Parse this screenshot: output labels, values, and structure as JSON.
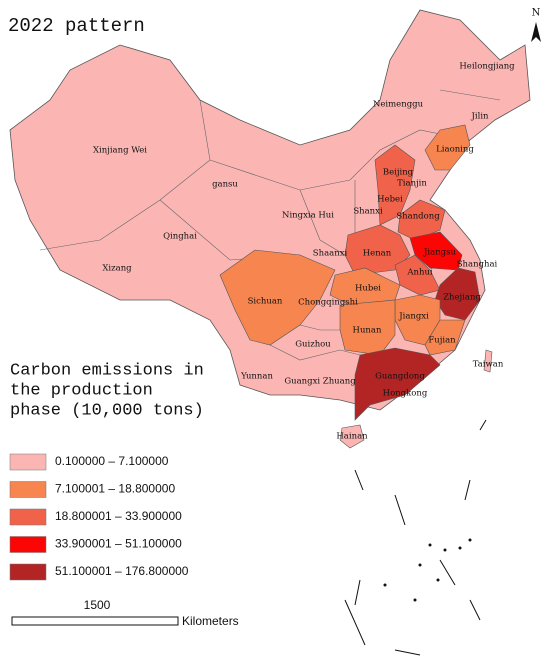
{
  "title": "2022 pattern",
  "north": "N",
  "legend": {
    "title_lines": [
      "Carbon emissions in",
      "the production",
      "phase (10,000 tons)"
    ],
    "items": [
      {
        "label": "0.100000 – 7.100000",
        "color": "#fbb6b4"
      },
      {
        "label": "7.100001 – 18.800000",
        "color": "#f6854f"
      },
      {
        "label": "18.800001 – 33.900000",
        "color": "#f0624a"
      },
      {
        "label": "33.900001 – 51.100000",
        "color": "#fb0505"
      },
      {
        "label": "51.100001 – 176.800000",
        "color": "#b32525"
      }
    ]
  },
  "scale": {
    "label": "1500",
    "unit": "Kilometers"
  },
  "provinces": [
    {
      "name": "Heilongjiang",
      "class": 0
    },
    {
      "name": "Jilin",
      "class": 0
    },
    {
      "name": "Liaoning",
      "class": 1
    },
    {
      "name": "Neimenggu",
      "class": 0
    },
    {
      "name": "Xinjiang Wei",
      "class": 0
    },
    {
      "name": "gansu",
      "class": 0
    },
    {
      "name": "Beijing",
      "class": 2
    },
    {
      "name": "Tianjin",
      "class": 2
    },
    {
      "name": "Hebei",
      "class": 2
    },
    {
      "name": "Shanxi",
      "class": 0
    },
    {
      "name": "Shandong",
      "class": 2
    },
    {
      "name": "Ningxia Hui",
      "class": 0
    },
    {
      "name": "Qinghai",
      "class": 0
    },
    {
      "name": "Shaanxi",
      "class": 0
    },
    {
      "name": "Henan",
      "class": 2
    },
    {
      "name": "Jiangsu",
      "class": 3
    },
    {
      "name": "Shanghai",
      "class": 4
    },
    {
      "name": "Anhui",
      "class": 2
    },
    {
      "name": "Xizang",
      "class": 0
    },
    {
      "name": "Hubei",
      "class": 1
    },
    {
      "name": "Zhejiang",
      "class": 4
    },
    {
      "name": "Sichuan",
      "class": 1
    },
    {
      "name": "Chongqingshi",
      "class": 0
    },
    {
      "name": "Jiangxi",
      "class": 1
    },
    {
      "name": "Hunan",
      "class": 1
    },
    {
      "name": "Fujian",
      "class": 1
    },
    {
      "name": "Guizhou",
      "class": 0
    },
    {
      "name": "Taiwan",
      "class": 0
    },
    {
      "name": "Yunnan",
      "class": 0
    },
    {
      "name": "Guangxi Zhuang",
      "class": 0
    },
    {
      "name": "Guangdong",
      "class": 4
    },
    {
      "name": "Hongkong",
      "class": 4
    },
    {
      "name": "Hainan",
      "class": 0
    }
  ]
}
